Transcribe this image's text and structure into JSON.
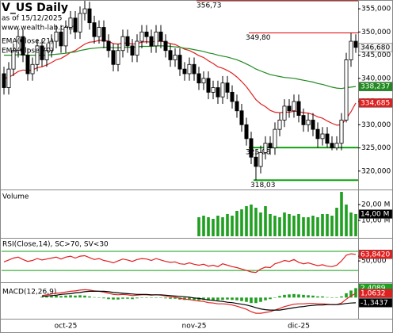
{
  "chart_data": [
    {
      "type": "candlestick",
      "title": "V_US Daily",
      "subtitle": "as of 15/12/2025",
      "source": "www.wealth-lab.com",
      "categories": [
        null,
        null,
        null,
        null,
        null,
        null,
        null,
        null,
        null,
        null,
        null,
        null,
        null,
        "oct-25",
        null,
        null,
        null,
        null,
        null,
        null,
        null,
        null,
        null,
        null,
        null,
        null,
        null,
        null,
        null,
        null,
        null,
        null,
        null,
        null,
        null,
        null,
        null,
        null,
        null,
        null,
        "nov-25",
        null,
        null,
        null,
        null,
        null,
        null,
        null,
        null,
        null,
        null,
        null,
        null,
        null,
        null,
        null,
        null,
        null,
        null,
        null,
        null,
        null,
        "dic-25",
        null,
        null,
        null,
        null,
        null,
        null,
        null,
        null,
        null,
        null,
        null,
        null
      ],
      "open": [
        341,
        338,
        342,
        346,
        349,
        345,
        341,
        343,
        347,
        344,
        346,
        348,
        350,
        347,
        351,
        353,
        350,
        354,
        355,
        352,
        349,
        351,
        348,
        346,
        343,
        346,
        349,
        347,
        345,
        348,
        350,
        349,
        347,
        350,
        348,
        346,
        344,
        345,
        342,
        341,
        343,
        341,
        339,
        340,
        337,
        338,
        336,
        339,
        337,
        335,
        333,
        330,
        327,
        323,
        321,
        324,
        326,
        325,
        329,
        331,
        334,
        333,
        335,
        332,
        330,
        331,
        329,
        327,
        328,
        326,
        325,
        326,
        331,
        344,
        348
      ],
      "high": [
        342.5,
        343.5,
        347.5,
        350.5,
        350.5,
        346.5,
        344.5,
        348.5,
        348.5,
        347.5,
        349.5,
        351.5,
        351.5,
        352.5,
        354.5,
        354.5,
        355.5,
        356.73,
        356.5,
        353.5,
        352.5,
        352.5,
        349.5,
        347.5,
        347.5,
        350.5,
        350.5,
        348.5,
        349.5,
        351.5,
        351.5,
        350.5,
        351.5,
        351.5,
        349.5,
        347.5,
        346.5,
        346.5,
        343.5,
        344.5,
        344.5,
        342.5,
        341.5,
        341.5,
        339.5,
        339.5,
        340.5,
        340.5,
        338.5,
        336.5,
        334.5,
        331.5,
        328.5,
        324.5,
        325.5,
        327.5,
        327.5,
        330.5,
        332.5,
        335.5,
        335.5,
        336.5,
        336.5,
        333.5,
        332.5,
        332.5,
        330.5,
        329.5,
        329.5,
        327.5,
        327.5,
        332.5,
        345.5,
        349.8,
        349.5
      ],
      "low": [
        336.5,
        336.5,
        340.5,
        344.5,
        343.5,
        339.5,
        339.5,
        341.5,
        342.5,
        342.5,
        344.5,
        346.5,
        345.5,
        345.5,
        349.5,
        348.5,
        348.5,
        352.5,
        350.5,
        347.5,
        347.5,
        346.5,
        344.5,
        341.5,
        341.5,
        344.5,
        345.5,
        343.5,
        343.5,
        346.5,
        347.5,
        345.5,
        345.5,
        346.5,
        344.5,
        342.5,
        342.5,
        340.5,
        339.5,
        339.5,
        339.5,
        337.5,
        337.5,
        335.5,
        335.5,
        334.5,
        334.5,
        335.5,
        333.5,
        331.5,
        328.5,
        325.5,
        321.5,
        318.03,
        319.5,
        322.5,
        323.5,
        323.5,
        327.5,
        329.5,
        331.5,
        331.5,
        330.5,
        328.5,
        328.5,
        327.5,
        325.08,
        325.5,
        325.08,
        324.5,
        324.5,
        324.5,
        330.5,
        342.5,
        345.5
      ],
      "close": [
        338,
        342,
        346,
        349,
        345,
        341,
        343,
        347,
        344,
        346,
        348,
        350,
        347,
        351,
        353,
        350,
        354,
        355,
        352,
        349,
        351,
        348,
        346,
        343,
        346,
        349,
        347,
        345,
        348,
        350,
        349,
        347,
        350,
        348,
        346,
        344,
        345,
        342,
        341,
        343,
        341,
        339,
        340,
        337,
        338,
        336,
        339,
        337,
        335,
        333,
        330,
        327,
        323,
        321,
        324,
        326,
        325,
        329,
        331,
        334,
        333,
        335,
        332,
        330,
        331,
        329,
        327,
        328,
        326,
        325,
        326,
        331,
        344,
        348,
        346.68
      ],
      "last_label": "346,680",
      "series": [
        {
          "name": "EMA(Close,21)",
          "color": "#e02020",
          "last_label": "334,685",
          "values": [
            340,
            340.2,
            340.8,
            341.5,
            341.8,
            341.7,
            341.8,
            342.3,
            342.5,
            342.9,
            343.4,
            344,
            344.3,
            344.9,
            345.6,
            346,
            346.7,
            347.4,
            347.8,
            347.9,
            348.2,
            348.2,
            348,
            347.5,
            347.4,
            347.6,
            347.6,
            347.4,
            347.5,
            347.8,
            347.9,
            347.8,
            348,
            348,
            347.8,
            347.5,
            347.3,
            346.8,
            346.3,
            346,
            345.5,
            344.9,
            344.5,
            343.8,
            343.2,
            342.5,
            342.2,
            341.7,
            341.1,
            340.3,
            339.3,
            338.2,
            336.8,
            335.4,
            334.5,
            333.9,
            333.1,
            332.7,
            332.6,
            332.7,
            332.7,
            332.9,
            332.8,
            332.6,
            332.5,
            332.2,
            331.7,
            331.4,
            330.8,
            330.3,
            329.9,
            330,
            331.3,
            332.8,
            334.685
          ]
        },
        {
          "name": "EMA(Close,70)",
          "color": "#208a20",
          "last_label": "338,237",
          "values": [
            345,
            345,
            345,
            345.1,
            345.1,
            345,
            345,
            345,
            345,
            345,
            345.1,
            345.2,
            345.3,
            345.4,
            345.6,
            345.7,
            346,
            346.2,
            346.4,
            346.5,
            346.6,
            346.7,
            346.7,
            346.6,
            346.6,
            346.7,
            346.7,
            346.7,
            346.8,
            346.9,
            346.9,
            346.9,
            347,
            347,
            347,
            346.9,
            346.8,
            346.7,
            346.5,
            346.4,
            346.2,
            346,
            345.8,
            345.5,
            345.3,
            345,
            344.8,
            344.6,
            344.3,
            344,
            343.6,
            343.1,
            342.6,
            342,
            341.6,
            341.2,
            340.8,
            340.6,
            340.4,
            340.2,
            340.1,
            340,
            339.8,
            339.6,
            339.4,
            339.2,
            338.9,
            338.7,
            338.4,
            338.1,
            337.9,
            337.8,
            338,
            338.1,
            338.237
          ]
        }
      ],
      "levels": [
        {
          "value": 356.73,
          "label": "356,73",
          "color": "#8b0000"
        },
        {
          "value": 349.8,
          "label": "349,80",
          "color": "#e00000"
        },
        {
          "value": 325.08,
          "label": "325,08",
          "color": "#10a010"
        },
        {
          "value": 318.03,
          "label": "318,03",
          "color": "#10a010"
        }
      ],
      "ylim": [
        316.2,
        356.9
      ],
      "yticks": [
        {
          "value": 320,
          "label": "320,000"
        },
        {
          "value": 325,
          "label": "325,000"
        },
        {
          "value": 330,
          "label": "330,000"
        },
        {
          "value": 335,
          "label": "335,000"
        },
        {
          "value": 340,
          "label": "340,000"
        },
        {
          "value": 345,
          "label": "345,000"
        },
        {
          "value": 350,
          "label": "350,000"
        },
        {
          "value": 355,
          "label": "355,000"
        }
      ]
    },
    {
      "type": "bar",
      "title": "Volume",
      "color": "#20a020",
      "last_label": "14,00 M",
      "values": [
        null,
        null,
        null,
        null,
        null,
        null,
        null,
        null,
        null,
        null,
        null,
        null,
        null,
        null,
        null,
        null,
        null,
        null,
        null,
        null,
        null,
        null,
        null,
        null,
        null,
        null,
        null,
        null,
        null,
        null,
        null,
        null,
        null,
        null,
        null,
        null,
        null,
        null,
        null,
        null,
        null,
        12,
        13,
        12,
        11,
        13,
        12,
        14,
        13,
        16,
        17,
        19,
        20,
        18,
        15,
        19,
        14,
        13,
        12,
        15,
        14,
        13,
        14,
        12,
        12,
        13,
        12,
        14,
        14,
        13,
        18,
        28,
        20,
        15,
        14
      ],
      "ylim": [
        0,
        28.5
      ],
      "yticks": [
        {
          "value": 10,
          "label": "10,00 M"
        },
        {
          "value": 20,
          "label": "20,00 M"
        }
      ]
    },
    {
      "type": "line",
      "title": "RSI(Close,14), SC>70, SV<30",
      "series": [
        {
          "color": "#e02020",
          "last_label": "63,8420",
          "values": [
            48,
            52,
            56,
            58,
            53,
            49,
            51,
            55,
            52,
            54,
            56,
            58,
            54,
            58,
            60,
            56,
            60,
            61,
            57,
            53,
            55,
            51,
            49,
            46,
            50,
            54,
            52,
            49,
            53,
            55,
            54,
            51,
            55,
            52,
            49,
            47,
            48,
            44,
            43,
            46,
            43,
            41,
            43,
            39,
            41,
            38,
            44,
            41,
            38,
            36,
            33,
            30,
            27,
            26,
            33,
            37,
            36,
            44,
            47,
            51,
            49,
            53,
            47,
            44,
            46,
            43,
            40,
            42,
            39,
            38,
            41,
            50,
            62,
            65,
            63.842
          ]
        }
      ],
      "levels": [
        {
          "value": 70,
          "color": "#10a010"
        },
        {
          "value": 30,
          "color": "#10a010"
        }
      ],
      "ylim": [
        7,
        95
      ],
      "yticks": [
        {
          "value": 50,
          "label": "50,000"
        },
        {
          "value": 60,
          "label": "60,000"
        }
      ]
    },
    {
      "type": "line",
      "title": "MACD(12,26,9)",
      "series": [
        {
          "kind": "bar",
          "color": "#20a020",
          "last_label": "2,4089",
          "values": [
            null,
            null,
            null,
            null,
            null,
            null,
            null,
            null,
            0.2,
            0.3,
            0.4,
            0.5,
            0.4,
            0.5,
            0.6,
            0.5,
            0.6,
            0.5,
            0.3,
            0.1,
            0,
            -0.2,
            -0.4,
            -0.5,
            -0.5,
            -0.3,
            -0.3,
            -0.4,
            -0.2,
            -0.1,
            -0.1,
            -0.1,
            0,
            -0.1,
            -0.2,
            -0.3,
            -0.3,
            -0.5,
            -0.6,
            -0.6,
            -0.6,
            -0.7,
            -0.6,
            -0.7,
            -0.7,
            -0.7,
            -0.6,
            -0.5,
            -0.6,
            -0.7,
            -0.9,
            -1.1,
            -1.4,
            -1.4,
            -1.1,
            -0.7,
            -0.4,
            0,
            0.4,
            0.7,
            0.8,
            0.9,
            0.8,
            0.7,
            0.6,
            0.5,
            0.3,
            0.3,
            0.1,
            0,
            0,
            0.3,
            1.1,
            1.8,
            2.4089
          ]
        },
        {
          "color": "#e02020",
          "last_label": "1,0632",
          "values": [
            null,
            null,
            null,
            null,
            null,
            null,
            null,
            null,
            0.5,
            0.7,
            0.9,
            1.1,
            1.2,
            1.4,
            1.6,
            1.7,
            1.9,
            2.0,
            1.9,
            1.7,
            1.6,
            1.4,
            1.1,
            0.8,
            0.7,
            0.8,
            0.7,
            0.5,
            0.6,
            0.7,
            0.7,
            0.6,
            0.7,
            0.6,
            0.4,
            0.2,
            0.1,
            -0.2,
            -0.4,
            -0.5,
            -0.7,
            -0.9,
            -1.0,
            -1.3,
            -1.4,
            -1.6,
            -1.6,
            -1.7,
            -1.9,
            -2.2,
            -2.6,
            -3.0,
            -3.6,
            -4.0,
            -4.0,
            -3.8,
            -3.6,
            -3.2,
            -2.8,
            -2.3,
            -2.0,
            -1.7,
            -1.6,
            -1.6,
            -1.5,
            -1.5,
            -1.6,
            -1.6,
            -1.7,
            -1.8,
            -1.8,
            -1.4,
            -0.4,
            0.4,
            1.0632
          ]
        },
        {
          "color": "#000000",
          "last_label": "-1,3437",
          "values": [
            null,
            null,
            null,
            null,
            null,
            null,
            null,
            null,
            0.3,
            0.4,
            0.5,
            0.6,
            0.8,
            0.9,
            1.0,
            1.2,
            1.3,
            1.5,
            1.6,
            1.6,
            1.6,
            1.6,
            1.5,
            1.3,
            1.2,
            1.1,
            1.0,
            0.9,
            0.8,
            0.8,
            0.8,
            0.7,
            0.7,
            0.7,
            0.6,
            0.5,
            0.4,
            0.3,
            0.2,
            0.1,
            -0.1,
            -0.2,
            -0.4,
            -0.6,
            -0.7,
            -0.9,
            -1.0,
            -1.2,
            -1.3,
            -1.5,
            -1.7,
            -1.9,
            -2.2,
            -2.6,
            -2.9,
            -3.1,
            -3.2,
            -3.2,
            -3.2,
            -3.0,
            -2.8,
            -2.6,
            -2.4,
            -2.3,
            -2.1,
            -2.0,
            -1.9,
            -1.9,
            -1.8,
            -1.8,
            -1.8,
            -1.7,
            -1.5,
            -1.4,
            -1.3437
          ]
        }
      ],
      "ylim": [
        -5,
        3.5
      ]
    }
  ]
}
